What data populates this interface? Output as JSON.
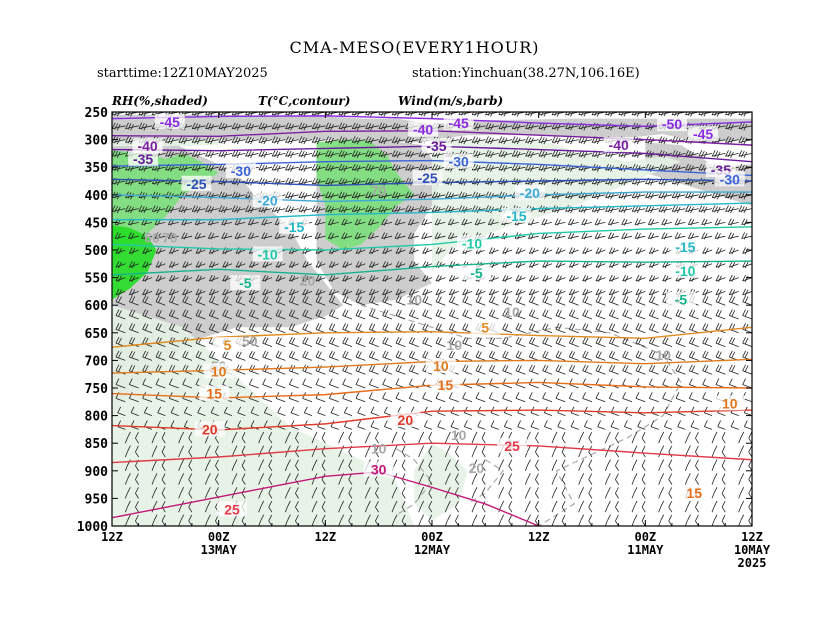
{
  "header": {
    "title": "CMA-MESO(EVERY1HOUR)",
    "starttime": "starttime:12Z10MAY2025",
    "station": "station:Yinchuan(38.27N,106.16E)"
  },
  "legend": {
    "rh": "RH(%,shaded)",
    "temp": "T(°C,contour)",
    "wind": "Wind(m/s,barb)"
  },
  "chart_data": {
    "type": "time-height cross section (shaded RH, temperature contours, wind barbs)",
    "y_axis": {
      "unit": "hPa",
      "ticks": [
        250,
        300,
        350,
        400,
        450,
        500,
        550,
        600,
        650,
        700,
        750,
        800,
        850,
        900,
        950,
        1000
      ],
      "range": [
        1000,
        250
      ]
    },
    "x_axis": {
      "direction": "time increases right to left",
      "ticks": [
        {
          "label": "12Z",
          "sub": "",
          "sub2": "",
          "hours": 72
        },
        {
          "label": "00Z",
          "sub": "13MAY",
          "sub2": "",
          "hours": 60
        },
        {
          "label": "12Z",
          "sub": "",
          "sub2": "",
          "hours": 48
        },
        {
          "label": "00Z",
          "sub": "12MAY",
          "sub2": "",
          "hours": 36
        },
        {
          "label": "12Z",
          "sub": "",
          "sub2": "",
          "hours": 24
        },
        {
          "label": "00Z",
          "sub": "11MAY",
          "sub2": "",
          "hours": 12
        },
        {
          "label": "12Z",
          "sub": "10MAY",
          "sub2": "2025",
          "hours": 0
        }
      ],
      "range_hours": [
        72,
        0
      ]
    },
    "rh_shading": {
      "colors": {
        "moist_gray": "#c8c8c8",
        "light_green": "#e4f2e4",
        "green": "#7be07b",
        "bright_green": "#22dd22"
      },
      "contour_labels": [
        {
          "text": "60",
          "hours": 67.5,
          "p": 477
        },
        {
          "text": "70",
          "hours": 65.5,
          "p": 477
        },
        {
          "text": "70",
          "hours": 56,
          "p": 405
        },
        {
          "text": "70",
          "hours": 42,
          "p": 392
        },
        {
          "text": "50",
          "hours": 56.5,
          "p": 665
        },
        {
          "text": "50",
          "hours": 60,
          "p": 710
        },
        {
          "text": "10",
          "hours": 27,
          "p": 612
        },
        {
          "text": "10",
          "hours": 38,
          "p": 590
        },
        {
          "text": "20",
          "hours": 50,
          "p": 555
        },
        {
          "text": "10",
          "hours": 33.5,
          "p": 672
        },
        {
          "text": "10",
          "hours": 10,
          "p": 690
        },
        {
          "text": "10",
          "hours": 33,
          "p": 835
        },
        {
          "text": "10",
          "hours": 42,
          "p": 860
        },
        {
          "text": "20",
          "hours": 31,
          "p": 895
        },
        {
          "text": "60",
          "hours": 3.5,
          "p": 375
        }
      ]
    },
    "temperature_contours": [
      {
        "value": -45,
        "color": "#8a2be2",
        "points": [
          [
            72,
            262
          ],
          [
            60,
            258
          ],
          [
            48,
            257
          ],
          [
            36,
            262
          ],
          [
            24,
            270
          ],
          [
            12,
            276
          ],
          [
            0,
            268
          ]
        ]
      },
      {
        "value": -40,
        "color": "#7b1fa2",
        "points": [
          [
            72,
            293
          ],
          [
            60,
            294
          ],
          [
            48,
            285
          ],
          [
            36,
            284
          ],
          [
            24,
            292
          ],
          [
            12,
            300
          ],
          [
            0,
            310
          ]
        ]
      },
      {
        "value": -35,
        "color": "#6a1b9a",
        "points": [
          [
            72,
            318
          ],
          [
            60,
            320
          ],
          [
            48,
            316
          ],
          [
            36,
            312
          ],
          [
            24,
            318
          ],
          [
            12,
            325
          ],
          [
            0,
            340
          ]
        ]
      },
      {
        "value": -30,
        "color": "#3b63d8",
        "points": [
          [
            72,
            348
          ],
          [
            60,
            345
          ],
          [
            48,
            340
          ],
          [
            36,
            338
          ],
          [
            24,
            345
          ],
          [
            12,
            355
          ],
          [
            0,
            365
          ]
        ]
      },
      {
        "value": -25,
        "color": "#2f4fb8",
        "points": [
          [
            72,
            372
          ],
          [
            60,
            376
          ],
          [
            48,
            383
          ],
          [
            36,
            378
          ],
          [
            24,
            375
          ],
          [
            12,
            372
          ],
          [
            0,
            375
          ]
        ]
      },
      {
        "value": -20,
        "color": "#3fa9d6",
        "points": [
          [
            72,
            400
          ],
          [
            60,
            405
          ],
          [
            48,
            412
          ],
          [
            36,
            408
          ],
          [
            24,
            400
          ],
          [
            12,
            395
          ],
          [
            0,
            395
          ]
        ]
      },
      {
        "value": -15,
        "color": "#22b8c8",
        "points": [
          [
            72,
            445
          ],
          [
            60,
            445
          ],
          [
            48,
            436
          ],
          [
            36,
            432
          ],
          [
            24,
            425
          ],
          [
            12,
            420
          ],
          [
            0,
            415
          ]
        ]
      },
      {
        "value": -10,
        "color": "#21c9a8",
        "points": [
          [
            72,
            490
          ],
          [
            60,
            498
          ],
          [
            48,
            500
          ],
          [
            36,
            490
          ],
          [
            24,
            470
          ],
          [
            12,
            462
          ],
          [
            0,
            458
          ]
        ]
      },
      {
        "value": -5,
        "color": "#14b48c",
        "points": [
          [
            72,
            545
          ],
          [
            60,
            535
          ],
          [
            48,
            545
          ],
          [
            36,
            530
          ],
          [
            24,
            520
          ],
          [
            12,
            522
          ],
          [
            0,
            520
          ]
        ]
      },
      {
        "value": 5,
        "color": "#e08a1e",
        "points": [
          [
            72,
            676
          ],
          [
            60,
            658
          ],
          [
            48,
            650
          ],
          [
            36,
            648
          ],
          [
            24,
            655
          ],
          [
            12,
            660
          ],
          [
            0,
            640
          ]
        ]
      },
      {
        "value": 10,
        "color": "#e07a1e",
        "points": [
          [
            72,
            723
          ],
          [
            60,
            718
          ],
          [
            48,
            712
          ],
          [
            36,
            702
          ],
          [
            24,
            700
          ],
          [
            12,
            706
          ],
          [
            0,
            698
          ]
        ]
      },
      {
        "value": 15,
        "color": "#e86d1a",
        "points": [
          [
            72,
            760
          ],
          [
            60,
            768
          ],
          [
            48,
            762
          ],
          [
            36,
            745
          ],
          [
            24,
            740
          ],
          [
            12,
            748
          ],
          [
            0,
            750
          ]
        ]
      },
      {
        "value": 20,
        "color": "#e03a2a",
        "points": [
          [
            72,
            818
          ],
          [
            60,
            826
          ],
          [
            48,
            815
          ],
          [
            36,
            792
          ],
          [
            24,
            790
          ],
          [
            12,
            795
          ],
          [
            0,
            790
          ]
        ]
      },
      {
        "value": 25,
        "color": "#e23a4a",
        "points": [
          [
            72,
            885
          ],
          [
            60,
            875
          ],
          [
            48,
            860
          ],
          [
            36,
            850
          ],
          [
            24,
            855
          ],
          [
            12,
            868
          ],
          [
            0,
            880
          ]
        ]
      },
      {
        "value": 30,
        "color": "#c2187a",
        "points": [
          [
            72,
            985
          ],
          [
            64,
            960
          ],
          [
            56,
            935
          ],
          [
            48,
            910
          ],
          [
            42,
            902
          ],
          [
            36,
            930
          ],
          [
            30,
            960
          ],
          [
            24,
            1000
          ]
        ]
      }
    ],
    "temperature_labels": [
      {
        "text": "-45",
        "hours": 65.5,
        "p": 268,
        "color": "#8a2be2"
      },
      {
        "text": "-40",
        "hours": 37,
        "p": 282,
        "color": "#8a2be2"
      },
      {
        "text": "-45",
        "hours": 33,
        "p": 270,
        "color": "#8a2be2"
      },
      {
        "text": "-50",
        "hours": 9,
        "p": 272,
        "color": "#8a2be2"
      },
      {
        "text": "-45",
        "hours": 5.5,
        "p": 290,
        "color": "#8a2be2"
      },
      {
        "text": "-40",
        "hours": 15,
        "p": 310,
        "color": "#7b1fa2"
      },
      {
        "text": "-40",
        "hours": 68,
        "p": 312,
        "color": "#7b1fa2"
      },
      {
        "text": "-35",
        "hours": 68.5,
        "p": 335,
        "color": "#6a1b9a"
      },
      {
        "text": "-35",
        "hours": 35.5,
        "p": 312,
        "color": "#6a1b9a"
      },
      {
        "text": "-35",
        "hours": 3.5,
        "p": 355,
        "color": "#6a1b9a"
      },
      {
        "text": "-30",
        "hours": 57.5,
        "p": 357,
        "color": "#3b63d8"
      },
      {
        "text": "-30",
        "hours": 33,
        "p": 340,
        "color": "#3b63d8"
      },
      {
        "text": "-30",
        "hours": 2.5,
        "p": 372,
        "color": "#3b63d8"
      },
      {
        "text": "-25",
        "hours": 62.5,
        "p": 380,
        "color": "#2f4fb8"
      },
      {
        "text": "-25",
        "hours": 36.5,
        "p": 370,
        "color": "#2f4fb8"
      },
      {
        "text": "-20",
        "hours": 54.5,
        "p": 410,
        "color": "#3fa9d6"
      },
      {
        "text": "-20",
        "hours": 25,
        "p": 397,
        "color": "#3fa9d6"
      },
      {
        "text": "-15",
        "hours": 51.5,
        "p": 458,
        "color": "#22b8c8"
      },
      {
        "text": "-15",
        "hours": 26.5,
        "p": 438,
        "color": "#22b8c8"
      },
      {
        "text": "-15",
        "hours": 7.5,
        "p": 495,
        "color": "#22b8c8"
      },
      {
        "text": "-10",
        "hours": 54.5,
        "p": 508,
        "color": "#21c9a8"
      },
      {
        "text": "-10",
        "hours": 31.5,
        "p": 488,
        "color": "#21c9a8"
      },
      {
        "text": "-10",
        "hours": 7.5,
        "p": 538,
        "color": "#21c9a8"
      },
      {
        "text": "-5",
        "hours": 57,
        "p": 560,
        "color": "#14b48c"
      },
      {
        "text": "-5",
        "hours": 31,
        "p": 542,
        "color": "#14b48c"
      },
      {
        "text": "-5",
        "hours": 8,
        "p": 590,
        "color": "#14b48c"
      },
      {
        "text": "5",
        "hours": 30,
        "p": 640,
        "color": "#e08a1e"
      },
      {
        "text": "5",
        "hours": 59,
        "p": 672,
        "color": "#e08a1e"
      },
      {
        "text": "10",
        "hours": 60,
        "p": 720,
        "color": "#e07a1e"
      },
      {
        "text": "10",
        "hours": 35,
        "p": 710,
        "color": "#e07a1e"
      },
      {
        "text": "10",
        "hours": 2.5,
        "p": 778,
        "color": "#e07a1e"
      },
      {
        "text": "15",
        "hours": 60.5,
        "p": 760,
        "color": "#e86d1a"
      },
      {
        "text": "15",
        "hours": 34.5,
        "p": 745,
        "color": "#e86d1a"
      },
      {
        "text": "15",
        "hours": 6.5,
        "p": 940,
        "color": "#e86d1a"
      },
      {
        "text": "20",
        "hours": 61,
        "p": 825,
        "color": "#e03a2a"
      },
      {
        "text": "20",
        "hours": 39,
        "p": 808,
        "color": "#e03a2a"
      },
      {
        "text": "25",
        "hours": 27,
        "p": 855,
        "color": "#e23a4a"
      },
      {
        "text": "25",
        "hours": 58.5,
        "p": 970,
        "color": "#e23a4a"
      },
      {
        "text": "30",
        "hours": 42,
        "p": 898,
        "color": "#c2187a"
      }
    ]
  }
}
